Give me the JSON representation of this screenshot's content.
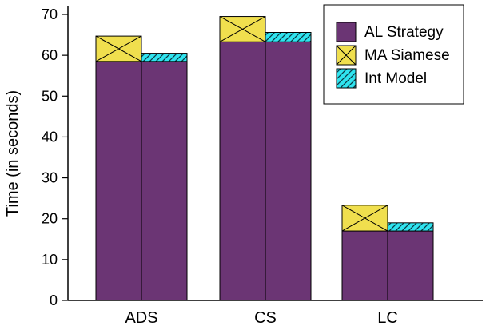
{
  "chart_data": {
    "type": "bar",
    "stacked": true,
    "ylabel": "Time (in seconds)",
    "ylim": [
      0,
      70
    ],
    "yticks": [
      "0",
      "10",
      "20",
      "30",
      "40",
      "50",
      "60",
      "70"
    ],
    "categories": [
      "ADS",
      "CS",
      "LC"
    ],
    "legend_position": "top-right",
    "groups": [
      {
        "category": "ADS",
        "bars": [
          {
            "segments": [
              {
                "series": "AL Strategy",
                "value": 58.5
              },
              {
                "series": "MA Siamese",
                "value": 6.2
              }
            ]
          },
          {
            "segments": [
              {
                "series": "AL Strategy",
                "value": 58.5
              },
              {
                "series": "Int Model",
                "value": 2.0
              }
            ]
          }
        ]
      },
      {
        "category": "CS",
        "bars": [
          {
            "segments": [
              {
                "series": "AL Strategy",
                "value": 63.3
              },
              {
                "series": "MA Siamese",
                "value": 6.2
              }
            ]
          },
          {
            "segments": [
              {
                "series": "AL Strategy",
                "value": 63.3
              },
              {
                "series": "Int Model",
                "value": 2.3
              }
            ]
          }
        ]
      },
      {
        "category": "LC",
        "bars": [
          {
            "segments": [
              {
                "series": "AL Strategy",
                "value": 17.0
              },
              {
                "series": "MA Siamese",
                "value": 6.3
              }
            ]
          },
          {
            "segments": [
              {
                "series": "AL Strategy",
                "value": 17.0
              },
              {
                "series": "Int Model",
                "value": 2.0
              }
            ]
          }
        ]
      }
    ],
    "legend": [
      {
        "name": "AL Strategy",
        "color": "#6b3574",
        "pattern": "solid"
      },
      {
        "name": "MA Siamese",
        "color": "#f0df4e",
        "pattern": "cross-hatch"
      },
      {
        "name": "Int Model",
        "color": "#2fe4ef",
        "pattern": "diagonal-stripes"
      }
    ]
  }
}
